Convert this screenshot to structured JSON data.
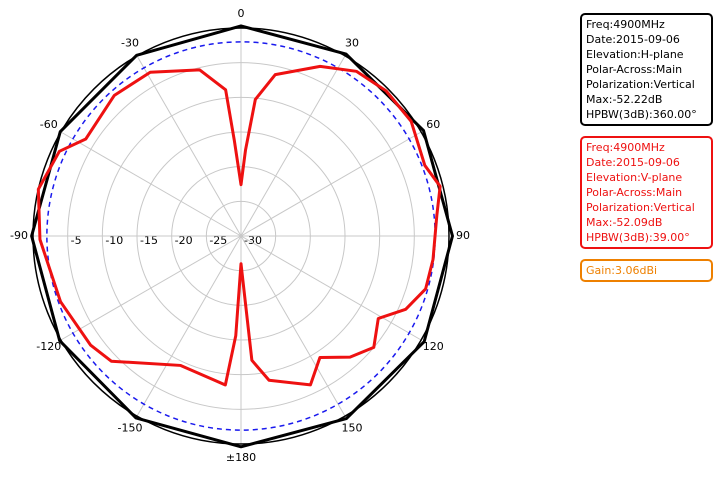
{
  "chart_data": {
    "type": "polar",
    "rlim": [
      -30,
      0
    ],
    "rticks": [
      -30,
      -25,
      -20,
      -15,
      -10,
      -5
    ],
    "thetaticks": [
      0,
      30,
      60,
      90,
      120,
      150,
      {
        "value": 180,
        "label": "±180"
      },
      -150,
      -120,
      -90,
      -60,
      -30
    ],
    "grid": true,
    "direction": "clockwise",
    "zero_location": "top",
    "reference_ring": {
      "value": -2,
      "color": "#1a1aee"
    },
    "series": [
      {
        "color": "#000000",
        "theta": [
          -180,
          -150,
          -120,
          -90,
          -60,
          -30,
          0,
          30,
          60,
          90,
          120,
          150,
          180
        ],
        "values": [
          0.4,
          0.3,
          0.2,
          0.2,
          0.1,
          0.1,
          0.3,
          0.3,
          0.4,
          0.5,
          0.5,
          0.4,
          0.4
        ]
      },
      {
        "color": "#ee1111",
        "theta": [
          -180,
          -177,
          -174,
          -155,
          -134,
          -126,
          -110,
          -91,
          -77,
          -65,
          -58,
          -42,
          -29,
          -14,
          -6,
          -4,
          0,
          3,
          6,
          12,
          25,
          35,
          45,
          56,
          69,
          76,
          84,
          97,
          106,
          114,
          121,
          130,
          138,
          147,
          155,
          169,
          175,
          180
        ],
        "values": [
          -26,
          -15.6,
          -8.4,
          -9.4,
          -4,
          -3.2,
          -2.3,
          -1,
          0,
          -1.1,
          -3.6,
          -2.7,
          -3,
          -5.3,
          -8.8,
          -16.2,
          -22.6,
          -17.6,
          -10.2,
          -6.2,
          -3,
          -1,
          -0.4,
          -0.4,
          -1.6,
          -0.4,
          -1.6,
          -2.1,
          -2.3,
          -4,
          -6.9,
          -5,
          -6.5,
          -9.1,
          -6.3,
          -8.8,
          -12,
          -26
        ]
      }
    ],
    "annotations": [
      {
        "color": "#000000",
        "lines": [
          "Freq:4900MHz",
          "Date:2015-09-06",
          "Elevation:H-plane",
          "Polar-Across:Main",
          "Polarization:Vertical",
          "Max:-52.22dB",
          "HPBW(3dB):360.00°"
        ]
      },
      {
        "color": "#ee1111",
        "lines": [
          "Freq:4900MHz",
          "Date:2015-09-06",
          "Elevation:V-plane",
          "Polar-Across:Main",
          "Polarization:Vertical",
          "Max:-52.09dB",
          "HPBW(3dB):39.00°"
        ]
      },
      {
        "color": "#ee8000",
        "lines": [
          "Gain:3.06dBi"
        ]
      }
    ]
  }
}
